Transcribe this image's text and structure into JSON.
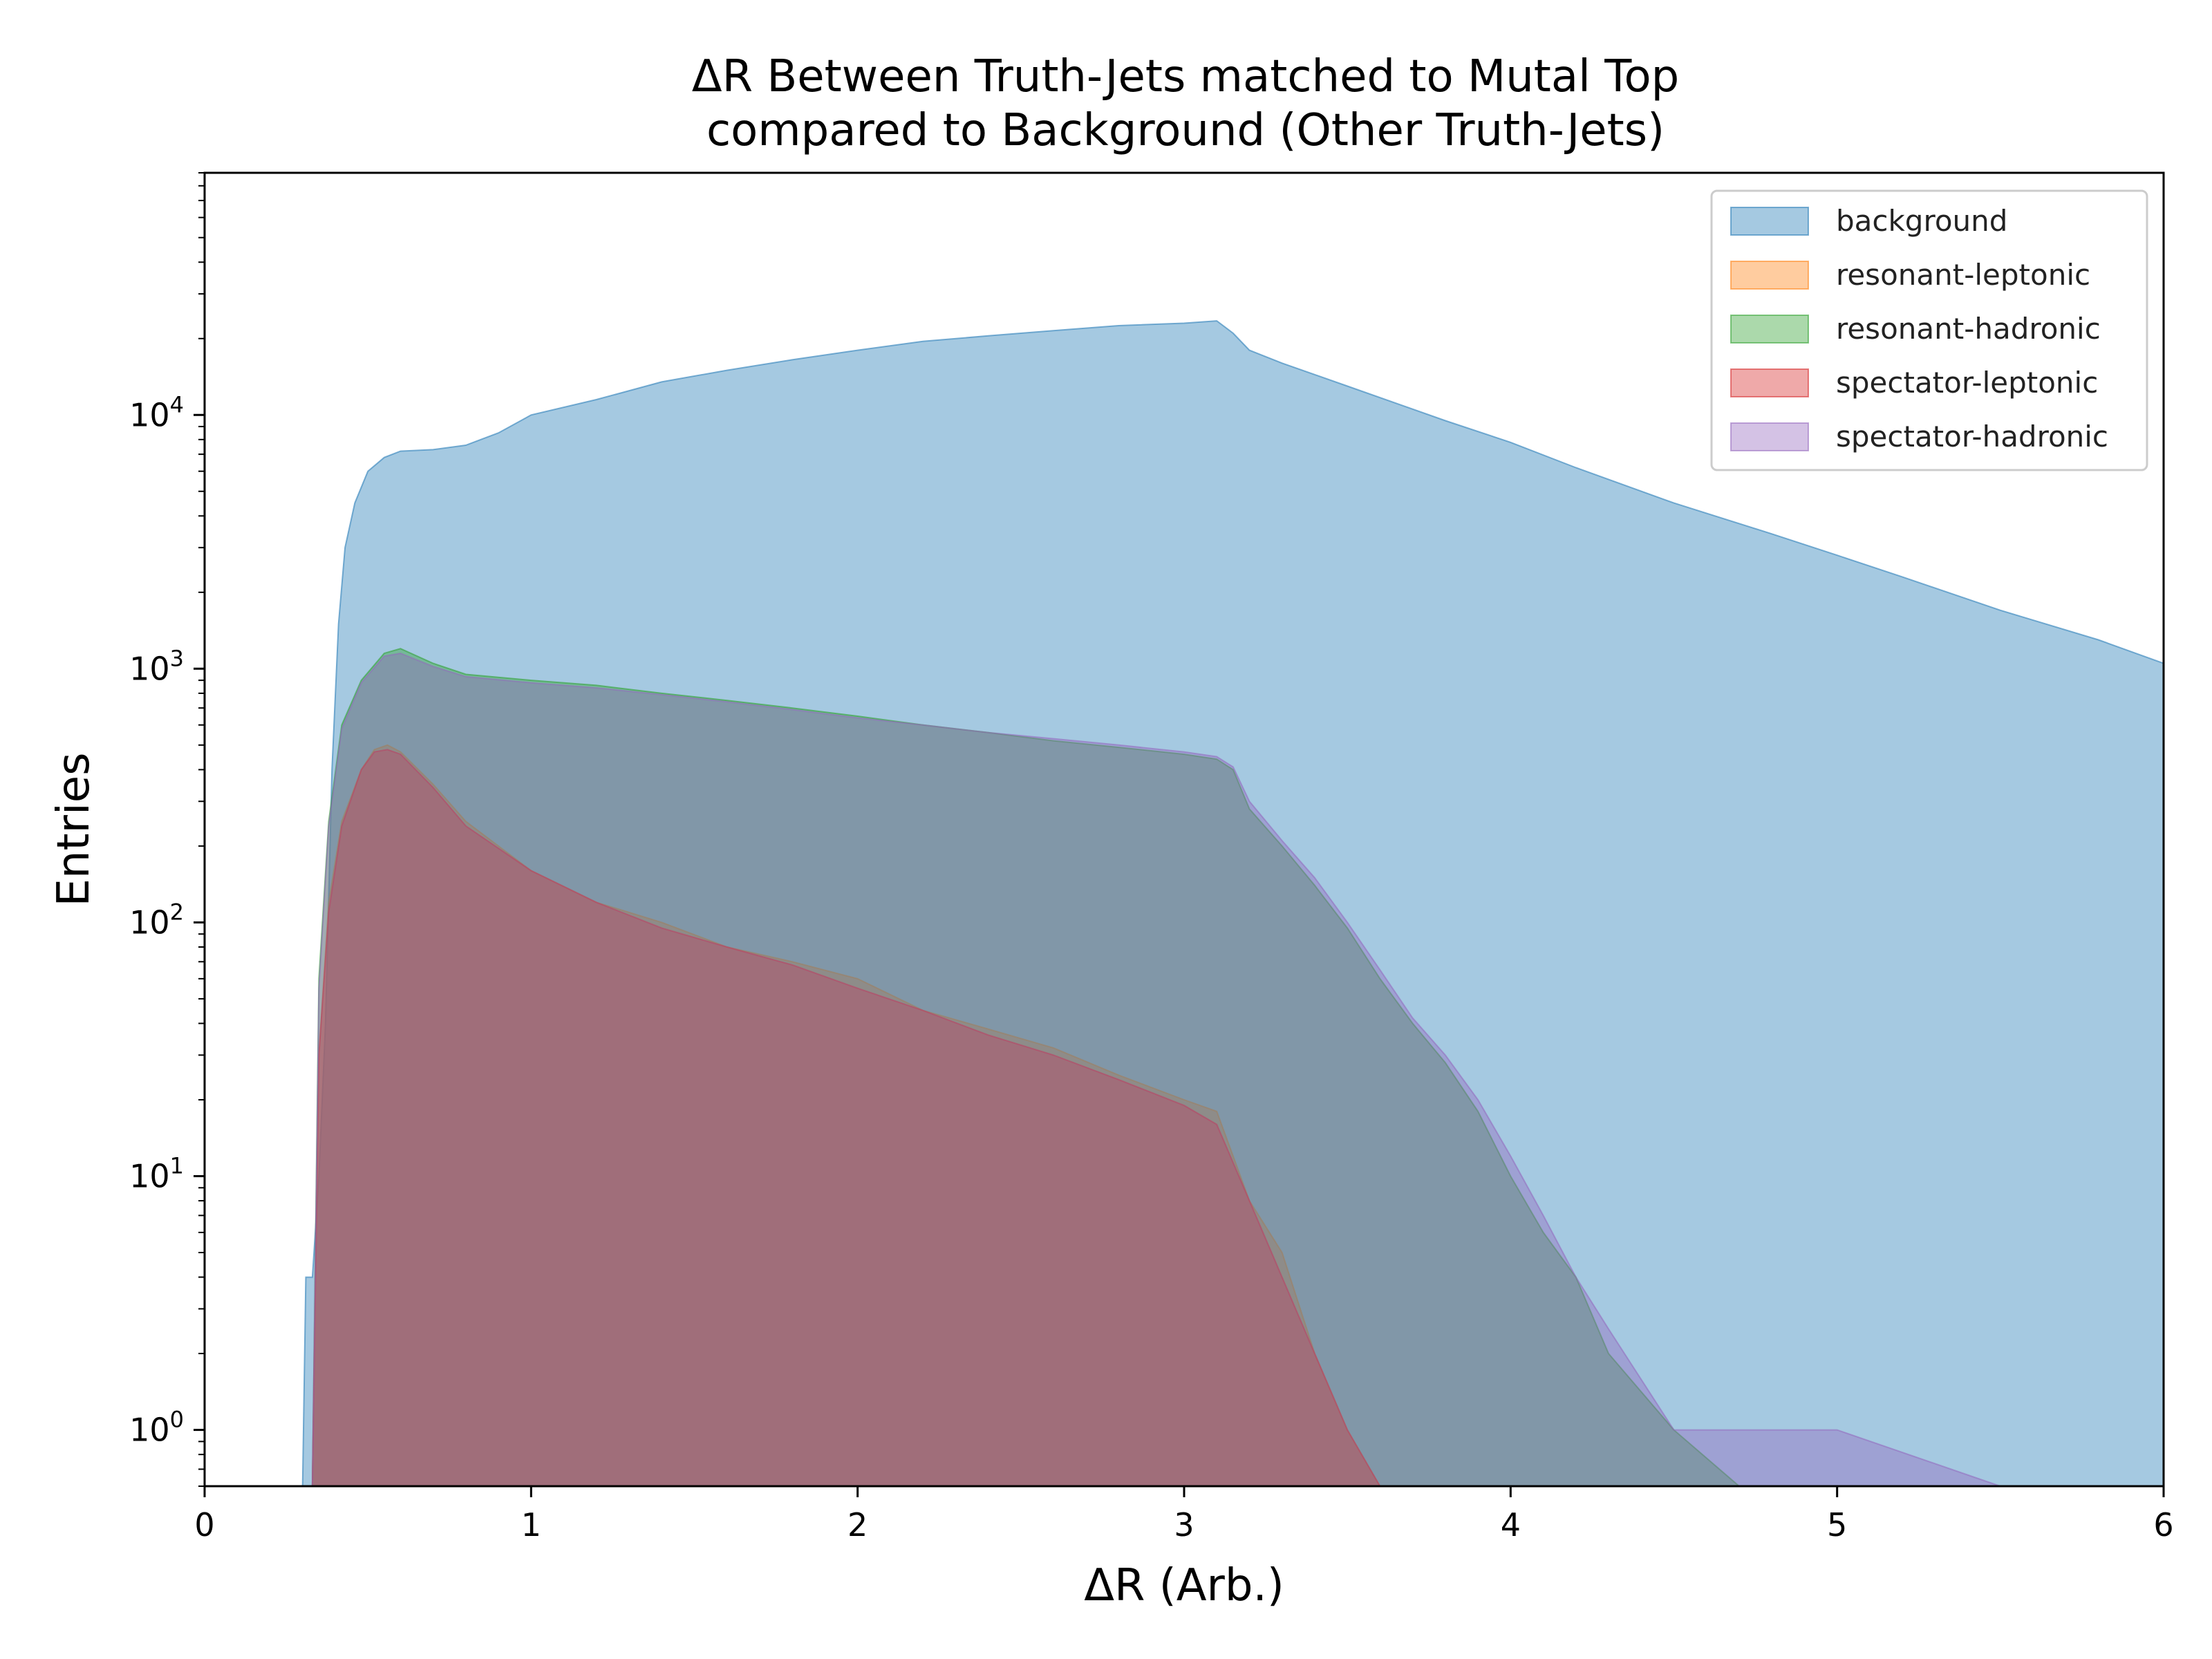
{
  "chart_data": {
    "type": "histogram",
    "title": "ΔR Between Truth-Jets matched to Mutal Top",
    "subtitle": "compared to Background (Other Truth-Jets)",
    "xlabel": "ΔR (Arb.)",
    "ylabel": "Entries",
    "xlim": [
      0,
      6
    ],
    "ylim": [
      0.6,
      90000
    ],
    "y_scale": "log",
    "x_ticks": [
      0,
      1,
      2,
      3,
      4,
      5,
      6
    ],
    "x_tick_labels": [
      "0",
      "1",
      "2",
      "3",
      "4",
      "5",
      "6"
    ],
    "y_ticks": [
      1,
      10,
      100,
      1000,
      10000
    ],
    "y_tick_labels": [
      {
        "base": "10",
        "exp": "0"
      },
      {
        "base": "10",
        "exp": "1"
      },
      {
        "base": "10",
        "exp": "2"
      },
      {
        "base": "10",
        "exp": "3"
      },
      {
        "base": "10",
        "exp": "4"
      }
    ],
    "legend_position": "top-right",
    "grid": false,
    "series": [
      {
        "name": "background",
        "color": "#1f77b4",
        "points": [
          [
            0.3,
            0.6
          ],
          [
            0.31,
            4
          ],
          [
            0.33,
            4
          ],
          [
            0.35,
            10
          ],
          [
            0.37,
            40
          ],
          [
            0.39,
            400
          ],
          [
            0.41,
            1500
          ],
          [
            0.43,
            3000
          ],
          [
            0.46,
            4500
          ],
          [
            0.5,
            6000
          ],
          [
            0.55,
            6800
          ],
          [
            0.6,
            7200
          ],
          [
            0.7,
            7300
          ],
          [
            0.8,
            7600
          ],
          [
            0.9,
            8500
          ],
          [
            1.0,
            10000
          ],
          [
            1.2,
            11500
          ],
          [
            1.4,
            13500
          ],
          [
            1.6,
            15000
          ],
          [
            1.8,
            16500
          ],
          [
            2.0,
            18000
          ],
          [
            2.2,
            19500
          ],
          [
            2.4,
            20500
          ],
          [
            2.6,
            21500
          ],
          [
            2.8,
            22500
          ],
          [
            3.0,
            23000
          ],
          [
            3.1,
            23500
          ],
          [
            3.15,
            21000
          ],
          [
            3.2,
            18000
          ],
          [
            3.3,
            16000
          ],
          [
            3.5,
            13000
          ],
          [
            3.8,
            9500
          ],
          [
            4.0,
            7800
          ],
          [
            4.2,
            6200
          ],
          [
            4.5,
            4500
          ],
          [
            4.8,
            3400
          ],
          [
            5.0,
            2800
          ],
          [
            5.2,
            2300
          ],
          [
            5.5,
            1700
          ],
          [
            5.8,
            1300
          ],
          [
            6.0,
            1050
          ]
        ]
      },
      {
        "name": "resonant-leptonic",
        "color": "#ff7f0e",
        "points": [
          [
            0.33,
            0.6
          ],
          [
            0.35,
            30
          ],
          [
            0.38,
            120
          ],
          [
            0.42,
            250
          ],
          [
            0.48,
            400
          ],
          [
            0.52,
            480
          ],
          [
            0.56,
            500
          ],
          [
            0.6,
            470
          ],
          [
            0.7,
            350
          ],
          [
            0.8,
            250
          ],
          [
            1.0,
            160
          ],
          [
            1.2,
            120
          ],
          [
            1.4,
            100
          ],
          [
            1.6,
            80
          ],
          [
            1.8,
            70
          ],
          [
            2.0,
            60
          ],
          [
            2.2,
            45
          ],
          [
            2.4,
            38
          ],
          [
            2.6,
            32
          ],
          [
            2.8,
            25
          ],
          [
            3.0,
            20
          ],
          [
            3.1,
            18
          ],
          [
            3.2,
            8
          ],
          [
            3.3,
            5
          ],
          [
            3.4,
            2
          ],
          [
            3.5,
            1
          ],
          [
            3.6,
            0.6
          ]
        ]
      },
      {
        "name": "resonant-hadronic",
        "color": "#2ca02c",
        "points": [
          [
            0.33,
            0.6
          ],
          [
            0.35,
            60
          ],
          [
            0.38,
            250
          ],
          [
            0.42,
            600
          ],
          [
            0.48,
            900
          ],
          [
            0.55,
            1150
          ],
          [
            0.6,
            1200
          ],
          [
            0.7,
            1050
          ],
          [
            0.8,
            950
          ],
          [
            1.0,
            900
          ],
          [
            1.2,
            860
          ],
          [
            1.4,
            800
          ],
          [
            1.6,
            750
          ],
          [
            1.8,
            700
          ],
          [
            2.0,
            650
          ],
          [
            2.2,
            600
          ],
          [
            2.4,
            560
          ],
          [
            2.6,
            520
          ],
          [
            2.8,
            490
          ],
          [
            3.0,
            460
          ],
          [
            3.1,
            440
          ],
          [
            3.15,
            400
          ],
          [
            3.2,
            280
          ],
          [
            3.3,
            200
          ],
          [
            3.4,
            140
          ],
          [
            3.5,
            95
          ],
          [
            3.6,
            60
          ],
          [
            3.7,
            40
          ],
          [
            3.8,
            28
          ],
          [
            3.9,
            18
          ],
          [
            4.0,
            10
          ],
          [
            4.1,
            6
          ],
          [
            4.2,
            4
          ],
          [
            4.3,
            2
          ],
          [
            4.5,
            1
          ],
          [
            4.7,
            0.6
          ]
        ]
      },
      {
        "name": "spectator-leptonic",
        "color": "#d62728",
        "points": [
          [
            0.33,
            0.6
          ],
          [
            0.35,
            30
          ],
          [
            0.38,
            110
          ],
          [
            0.42,
            240
          ],
          [
            0.48,
            400
          ],
          [
            0.52,
            470
          ],
          [
            0.56,
            480
          ],
          [
            0.6,
            460
          ],
          [
            0.7,
            340
          ],
          [
            0.8,
            240
          ],
          [
            1.0,
            160
          ],
          [
            1.2,
            120
          ],
          [
            1.4,
            95
          ],
          [
            1.6,
            80
          ],
          [
            1.8,
            68
          ],
          [
            2.0,
            55
          ],
          [
            2.2,
            45
          ],
          [
            2.4,
            36
          ],
          [
            2.6,
            30
          ],
          [
            2.8,
            24
          ],
          [
            3.0,
            19
          ],
          [
            3.1,
            16
          ],
          [
            3.2,
            8
          ],
          [
            3.3,
            4
          ],
          [
            3.4,
            2
          ],
          [
            3.5,
            1
          ],
          [
            3.6,
            0.6
          ]
        ]
      },
      {
        "name": "spectator-hadronic",
        "color": "#9467bd",
        "points": [
          [
            0.33,
            0.6
          ],
          [
            0.35,
            55
          ],
          [
            0.38,
            240
          ],
          [
            0.42,
            580
          ],
          [
            0.48,
            880
          ],
          [
            0.55,
            1120
          ],
          [
            0.6,
            1150
          ],
          [
            0.7,
            1020
          ],
          [
            0.8,
            930
          ],
          [
            1.0,
            880
          ],
          [
            1.2,
            840
          ],
          [
            1.4,
            790
          ],
          [
            1.6,
            740
          ],
          [
            1.8,
            690
          ],
          [
            2.0,
            640
          ],
          [
            2.2,
            600
          ],
          [
            2.4,
            560
          ],
          [
            2.6,
            530
          ],
          [
            2.8,
            500
          ],
          [
            3.0,
            470
          ],
          [
            3.1,
            450
          ],
          [
            3.15,
            410
          ],
          [
            3.2,
            300
          ],
          [
            3.3,
            210
          ],
          [
            3.4,
            150
          ],
          [
            3.5,
            100
          ],
          [
            3.6,
            65
          ],
          [
            3.7,
            42
          ],
          [
            3.8,
            30
          ],
          [
            3.9,
            20
          ],
          [
            4.0,
            12
          ],
          [
            4.1,
            7
          ],
          [
            4.2,
            4
          ],
          [
            4.3,
            2.5
          ],
          [
            4.5,
            1
          ],
          [
            5.0,
            1
          ],
          [
            5.5,
            0.6
          ]
        ]
      }
    ]
  }
}
